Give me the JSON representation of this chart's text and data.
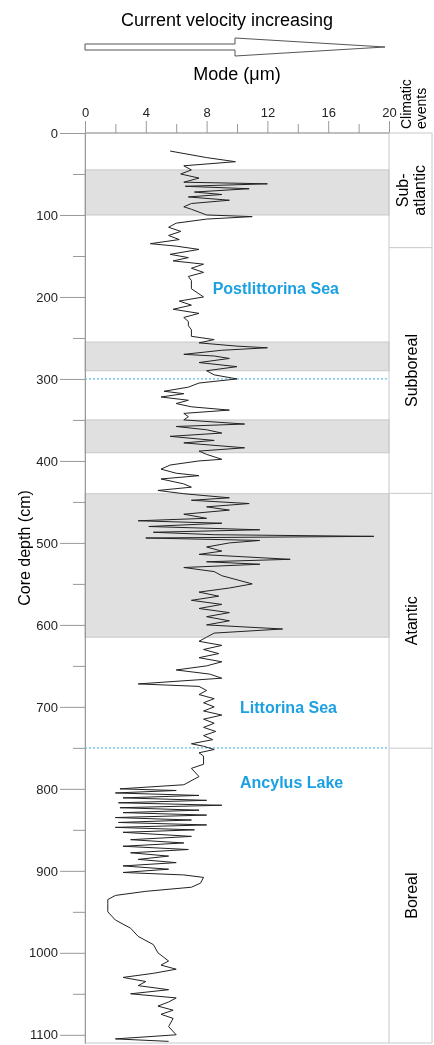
{
  "chart_data": {
    "type": "line",
    "xlabel": "Mode (μm)",
    "ylabel": "Core depth (cm)",
    "legend_title": "Climatic events",
    "xlim": [
      0,
      20
    ],
    "ylim": [
      1110,
      0
    ],
    "xticks": [
      0,
      {
        "value": 2,
        "label": null
      },
      4,
      {
        "value": 6,
        "label": null
      },
      8,
      {
        "value": 10,
        "label": null
      },
      12,
      {
        "value": 14,
        "label": null
      },
      16,
      {
        "value": 18,
        "label": null
      },
      20
    ],
    "yticks": [
      0,
      {
        "value": 50,
        "label": null
      },
      100,
      {
        "value": 150,
        "label": null
      },
      200,
      {
        "value": 250,
        "label": null
      },
      300,
      {
        "value": 350,
        "label": null
      },
      400,
      {
        "value": 450,
        "label": null
      },
      500,
      {
        "value": 550,
        "label": null
      },
      600,
      {
        "value": 650,
        "label": null
      },
      700,
      {
        "value": 750,
        "label": null
      },
      800,
      {
        "value": 850,
        "label": null
      },
      900,
      {
        "value": 950,
        "label": null
      },
      1000,
      {
        "value": 1050,
        "label": null
      },
      1100
    ],
    "marker": "none",
    "line_style": "solid",
    "bands": [
      {
        "axis": "y",
        "from": 45,
        "to": 100,
        "color": "#e0e0e0"
      },
      {
        "axis": "y",
        "from": 255,
        "to": 290,
        "color": "#e0e0e0"
      },
      {
        "axis": "y",
        "from": 350,
        "to": 390,
        "color": "#e0e0e0"
      },
      {
        "axis": "y",
        "from": 440,
        "to": 615,
        "color": "#e0e0e0"
      }
    ],
    "ref_lines": [
      {
        "axis": "y",
        "value": 300,
        "color": "#5bc0eb",
        "line_style": "dotted"
      },
      {
        "axis": "y",
        "value": 750,
        "color": "#5bc0eb",
        "line_style": "dotted"
      }
    ],
    "annotations": [
      "Current velocity increasing",
      "Postlittorina Sea",
      "Littorina Sea",
      "Ancylus Lake",
      "Sub-atlantic",
      "Subboreal",
      "Atantic",
      "Boreal"
    ],
    "series": [
      {
        "color": "#222222",
        "x": [
          5.6,
          8.0,
          9.9,
          6.5,
          7.0,
          6.3,
          7.5,
          6.5,
          12.0,
          6.6,
          10.8,
          7.2,
          9.0,
          6.8,
          9.5,
          7.0,
          6.5,
          7.0,
          8.0,
          11.0,
          8.0,
          6.0,
          5.5,
          6.3,
          5.5,
          6.2,
          4.3,
          6.0,
          7.5,
          5.6,
          6.8,
          5.8,
          7.8,
          7.0,
          7.8,
          6.8,
          7.0,
          7.0,
          7.8,
          6.2,
          7.0,
          5.8,
          7.5,
          6.5,
          6.8,
          6.8,
          7.0,
          7.0,
          8.5,
          7.5,
          10.0,
          12.0,
          9.0,
          6.5,
          8.5,
          9.5,
          7.5,
          10.0,
          8.0,
          8.5,
          10.0,
          7.5,
          6.8,
          5.2,
          6.5,
          5.0,
          6.8,
          6.0,
          7.0,
          9.5,
          6.5,
          6.8,
          6.5,
          10.5,
          6.0,
          8.0,
          9.0,
          5.6,
          8.5,
          6.5,
          10.5,
          7.5,
          8.0,
          9.0,
          7.5,
          5.6,
          5.0,
          6.0,
          7.5,
          5.0,
          6.5,
          7.0,
          4.8,
          6.5,
          9.5,
          7.0,
          10.8,
          8.0,
          9.5,
          6.5,
          8.0,
          3.5,
          9.0,
          4.2,
          11.5,
          4.5,
          8.5,
          19.0,
          4.0,
          11.5,
          9.5,
          8.0,
          9.0,
          7.5,
          13.5,
          8.0,
          11.5,
          6.5,
          8.5,
          9.0,
          10.0,
          11.0,
          9.5,
          7.5,
          8.8,
          7.0,
          9.0,
          7.5,
          9.5,
          8.0,
          9.5,
          8.0,
          13.0,
          8.5,
          8.0,
          7.5,
          9.0,
          7.8,
          8.8,
          7.5,
          9.0,
          8.0,
          6.0,
          8.2,
          9.0,
          3.5,
          7.5,
          8.0,
          7.5,
          8.5,
          7.8,
          8.5,
          7.8,
          9.0,
          7.8,
          8.5,
          7.8,
          8.6,
          7.8,
          8.4,
          7.0,
          7.8,
          8.5,
          7.5,
          7.8,
          7.8,
          7.0,
          7.5,
          6.5,
          2.3,
          6.0,
          2.0,
          7.5,
          2.5,
          8.0,
          2.2,
          9.0,
          2.3,
          7.5,
          2.5,
          8.0,
          2.0,
          7.0,
          2.2,
          8.0,
          2.0,
          7.2,
          2.5,
          7.0,
          3.0,
          6.5,
          2.5,
          6.8,
          3.0,
          5.5,
          3.5,
          6.0,
          2.5,
          5.5,
          2.5,
          6.5,
          7.8,
          7.6,
          7.0,
          4.0,
          2.0,
          1.5,
          1.5,
          1.5,
          2.0,
          2.5,
          3.0,
          3.5,
          4.5,
          4.8,
          5.5,
          5.0,
          6.0,
          4.5,
          2.5,
          4.0,
          3.5,
          5.5,
          3.0,
          6.0,
          5.5,
          4.8,
          5.8,
          5.0,
          5.8,
          5.5,
          6.0,
          2.0,
          5.5
        ],
        "values": [
          22,
          30,
          35,
          40,
          45,
          50,
          55,
          60,
          62,
          65,
          68,
          72,
          75,
          78,
          82,
          86,
          90,
          93,
          100,
          102,
          105,
          110,
          115,
          120,
          125,
          130,
          135,
          138,
          142,
          148,
          152,
          156,
          160,
          165,
          170,
          175,
          180,
          190,
          200,
          205,
          210,
          215,
          220,
          225,
          230,
          235,
          240,
          248,
          252,
          256,
          260,
          262,
          265,
          270,
          272,
          275,
          280,
          285,
          290,
          295,
          300,
          305,
          310,
          315,
          318,
          322,
          326,
          330,
          334,
          338,
          342,
          346,
          350,
          355,
          358,
          362,
          366,
          370,
          375,
          378,
          384,
          388,
          392,
          398,
          400,
          405,
          410,
          415,
          418,
          422,
          428,
          432,
          436,
          440,
          445,
          448,
          452,
          456,
          460,
          465,
          470,
          473,
          476,
          480,
          484,
          487,
          490,
          492,
          494,
          497,
          500,
          505,
          510,
          514,
          520,
          523,
          526,
          530,
          535,
          540,
          545,
          550,
          555,
          560,
          565,
          570,
          575,
          580,
          585,
          590,
          595,
          600,
          605,
          610,
          615,
          620,
          625,
          630,
          635,
          640,
          645,
          650,
          655,
          660,
          665,
          672,
          675,
          680,
          685,
          690,
          695,
          700,
          705,
          710,
          715,
          720,
          725,
          730,
          735,
          740,
          745,
          748,
          752,
          756,
          760,
          770,
          775,
          785,
          795,
          800,
          802,
          805,
          808,
          811,
          814,
          817,
          820,
          823,
          826,
          829,
          832,
          835,
          838,
          841,
          844,
          847,
          850,
          853,
          858,
          862,
          866,
          870,
          874,
          878,
          882,
          886,
          890,
          894,
          898,
          902,
          905,
          908,
          915,
          920,
          925,
          930,
          935,
          940,
          950,
          960,
          965,
          970,
          980,
          990,
          1000,
          1010,
          1015,
          1020,
          1025,
          1030,
          1035,
          1040,
          1045,
          1050,
          1055,
          1060,
          1065,
          1070,
          1075,
          1080,
          1090,
          1100,
          1105,
          1108
        ]
      }
    ]
  }
}
